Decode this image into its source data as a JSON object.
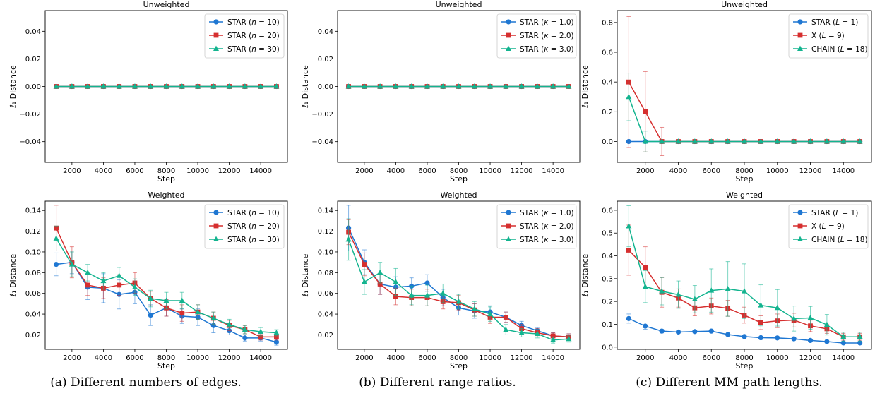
{
  "captions": [
    "(a) Different numbers of edges.",
    "(b) Different range ratios.",
    "(c) Different MM path lengths."
  ],
  "colors": {
    "blue": "#1f77d2",
    "red": "#d62f2f",
    "green": "#13b48f"
  },
  "chart_data": [
    {
      "type": "line",
      "title": "Unweighted",
      "xlabel": "Step",
      "ylabel": "ℓ₁ Distance",
      "x": [
        1000,
        2000,
        3000,
        4000,
        5000,
        6000,
        7000,
        8000,
        9000,
        10000,
        11000,
        12000,
        13000,
        14000,
        15000
      ],
      "xticks": [
        2000,
        4000,
        6000,
        8000,
        10000,
        12000,
        14000
      ],
      "xlim": [
        300,
        15700
      ],
      "ylim": [
        -0.055,
        0.055
      ],
      "yticks": [
        -0.04,
        -0.02,
        0.0,
        0.02,
        0.04
      ],
      "ytick_labels": [
        "−0.04",
        "−0.02",
        "0.00",
        "0.02",
        "0.04"
      ],
      "legend_position": "top-right",
      "series": [
        {
          "name": "STAR (n = 10)",
          "label_main": "STAR (",
          "label_var": "n",
          "label_rest": " = 10)",
          "color": "#1f77d2",
          "marker": "circle",
          "values": [
            0,
            0,
            0,
            0,
            0,
            0,
            0,
            0,
            0,
            0,
            0,
            0,
            0,
            0,
            0
          ],
          "errors": [
            0,
            0,
            0,
            0,
            0,
            0,
            0,
            0,
            0,
            0,
            0,
            0,
            0,
            0,
            0
          ]
        },
        {
          "name": "STAR (n = 20)",
          "label_main": "STAR (",
          "label_var": "n",
          "label_rest": " = 20)",
          "color": "#d62f2f",
          "marker": "square",
          "values": [
            0,
            0,
            0,
            0,
            0,
            0,
            0,
            0,
            0,
            0,
            0,
            0,
            0,
            0,
            0
          ],
          "errors": [
            0,
            0,
            0,
            0,
            0,
            0,
            0,
            0,
            0,
            0,
            0,
            0,
            0,
            0,
            0
          ]
        },
        {
          "name": "STAR (n = 30)",
          "label_main": "STAR (",
          "label_var": "n",
          "label_rest": " = 30)",
          "color": "#13b48f",
          "marker": "triangle",
          "values": [
            0,
            0,
            0,
            0,
            0,
            0,
            0,
            0,
            0,
            0,
            0,
            0,
            0,
            0,
            0
          ],
          "errors": [
            0,
            0,
            0,
            0,
            0,
            0,
            0,
            0,
            0,
            0,
            0,
            0,
            0,
            0,
            0
          ]
        }
      ]
    },
    {
      "type": "line",
      "title": "Unweighted",
      "xlabel": "Step",
      "ylabel": "ℓ₁ Distance",
      "x": [
        1000,
        2000,
        3000,
        4000,
        5000,
        6000,
        7000,
        8000,
        9000,
        10000,
        11000,
        12000,
        13000,
        14000,
        15000
      ],
      "xticks": [
        2000,
        4000,
        6000,
        8000,
        10000,
        12000,
        14000
      ],
      "xlim": [
        300,
        15700
      ],
      "ylim": [
        -0.055,
        0.055
      ],
      "yticks": [
        -0.04,
        -0.02,
        0.0,
        0.02,
        0.04
      ],
      "ytick_labels": [
        "−0.04",
        "−0.02",
        "0.00",
        "0.02",
        "0.04"
      ],
      "legend_position": "top-right",
      "series": [
        {
          "name": "STAR (κ = 1.0)",
          "label_main": "STAR (",
          "label_var": "κ",
          "label_rest": " = 1.0)",
          "color": "#1f77d2",
          "marker": "circle",
          "values": [
            0,
            0,
            0,
            0,
            0,
            0,
            0,
            0,
            0,
            0,
            0,
            0,
            0,
            0,
            0
          ],
          "errors": [
            0,
            0,
            0,
            0,
            0,
            0,
            0,
            0,
            0,
            0,
            0,
            0,
            0,
            0,
            0
          ]
        },
        {
          "name": "STAR (κ = 2.0)",
          "label_main": "STAR (",
          "label_var": "κ",
          "label_rest": " = 2.0)",
          "color": "#d62f2f",
          "marker": "square",
          "values": [
            0,
            0,
            0,
            0,
            0,
            0,
            0,
            0,
            0,
            0,
            0,
            0,
            0,
            0,
            0
          ],
          "errors": [
            0,
            0,
            0,
            0,
            0,
            0,
            0,
            0,
            0,
            0,
            0,
            0,
            0,
            0,
            0
          ]
        },
        {
          "name": "STAR (κ = 3.0)",
          "label_main": "STAR (",
          "label_var": "κ",
          "label_rest": " = 3.0)",
          "color": "#13b48f",
          "marker": "triangle",
          "values": [
            0,
            0,
            0,
            0,
            0,
            0,
            0,
            0,
            0,
            0,
            0,
            0,
            0,
            0,
            0
          ],
          "errors": [
            0,
            0,
            0,
            0,
            0,
            0,
            0,
            0,
            0,
            0,
            0,
            0,
            0,
            0,
            0
          ]
        }
      ]
    },
    {
      "type": "line",
      "title": "Unweighted",
      "xlabel": "Step",
      "ylabel": "ℓ₁ Distance",
      "x": [
        1000,
        2000,
        3000,
        4000,
        5000,
        6000,
        7000,
        8000,
        9000,
        10000,
        11000,
        12000,
        13000,
        14000,
        15000
      ],
      "xticks": [
        2000,
        4000,
        6000,
        8000,
        10000,
        12000,
        14000
      ],
      "xlim": [
        300,
        15700
      ],
      "ylim": [
        -0.14,
        0.88
      ],
      "yticks": [
        0.0,
        0.2,
        0.4,
        0.6,
        0.8
      ],
      "ytick_labels": [
        "0.0",
        "0.2",
        "0.4",
        "0.6",
        "0.8"
      ],
      "legend_position": "top-right",
      "series": [
        {
          "name": "STAR (L = 1)",
          "label_main": "STAR (",
          "label_var": "L",
          "label_rest": " = 1)",
          "color": "#1f77d2",
          "marker": "circle",
          "values": [
            0,
            0,
            0,
            0,
            0,
            0,
            0,
            0,
            0,
            0,
            0,
            0,
            0,
            0,
            0
          ],
          "errors": [
            0,
            0,
            0,
            0,
            0,
            0,
            0,
            0,
            0,
            0,
            0,
            0,
            0,
            0,
            0
          ]
        },
        {
          "name": "X (L = 9)",
          "label_main": "X (",
          "label_var": "L",
          "label_rest": " = 9)",
          "color": "#d62f2f",
          "marker": "square",
          "values": [
            0.4,
            0.2,
            0,
            0,
            0,
            0,
            0,
            0,
            0,
            0,
            0,
            0,
            0,
            0,
            0
          ],
          "errors": [
            0.44,
            0.27,
            0.095,
            0,
            0,
            0,
            0,
            0,
            0,
            0,
            0,
            0,
            0,
            0,
            0
          ]
        },
        {
          "name": "CHAIN (L = 18)",
          "label_main": "CHAIN (",
          "label_var": "L",
          "label_rest": " = 18)",
          "color": "#13b48f",
          "marker": "triangle",
          "values": [
            0.3,
            0,
            0,
            0,
            0,
            0,
            0,
            0,
            0,
            0,
            0,
            0,
            0,
            0,
            0
          ],
          "errors": [
            0.16,
            0.07,
            0,
            0,
            0,
            0,
            0,
            0,
            0,
            0,
            0,
            0,
            0,
            0,
            0
          ]
        }
      ]
    },
    {
      "type": "line",
      "title": "Weighted",
      "xlabel": "Step",
      "ylabel": "ℓ₁ Distance",
      "x": [
        1000,
        2000,
        3000,
        4000,
        5000,
        6000,
        7000,
        8000,
        9000,
        10000,
        11000,
        12000,
        13000,
        14000,
        15000
      ],
      "xticks": [
        2000,
        4000,
        6000,
        8000,
        10000,
        12000,
        14000
      ],
      "xlim": [
        300,
        15700
      ],
      "ylim": [
        0.006,
        0.149
      ],
      "yticks": [
        0.02,
        0.04,
        0.06,
        0.08,
        0.1,
        0.12,
        0.14
      ],
      "ytick_labels": [
        "0.02",
        "0.04",
        "0.06",
        "0.08",
        "0.10",
        "0.12",
        "0.14"
      ],
      "legend_position": "top-right",
      "series": [
        {
          "name": "STAR (n = 10)",
          "label_main": "STAR (",
          "label_var": "n",
          "label_rest": " = 10)",
          "color": "#1f77d2",
          "marker": "circle",
          "values": [
            0.088,
            0.09,
            0.066,
            0.065,
            0.059,
            0.061,
            0.039,
            0.046,
            0.038,
            0.037,
            0.029,
            0.024,
            0.017,
            0.017,
            0.013
          ],
          "errors": [
            0.011,
            0.011,
            0.012,
            0.014,
            0.014,
            0.011,
            0.01,
            0.008,
            0.007,
            0.008,
            0.007,
            0.004,
            0.003,
            0.003,
            0.003
          ]
        },
        {
          "name": "STAR (n = 20)",
          "label_main": "STAR (",
          "label_var": "n",
          "label_rest": " = 20)",
          "color": "#d62f2f",
          "marker": "square",
          "values": [
            0.123,
            0.09,
            0.068,
            0.065,
            0.068,
            0.07,
            0.055,
            0.046,
            0.041,
            0.042,
            0.036,
            0.029,
            0.025,
            0.018,
            0.018
          ],
          "errors": [
            0.022,
            0.015,
            0.01,
            0.01,
            0.01,
            0.01,
            0.007,
            0.008,
            0.008,
            0.007,
            0.006,
            0.005,
            0.004,
            0.003,
            0.003
          ]
        },
        {
          "name": "STAR (n = 30)",
          "label_main": "STAR (",
          "label_var": "n",
          "label_rest": " = 30)",
          "color": "#13b48f",
          "marker": "triangle",
          "values": [
            0.113,
            0.088,
            0.08,
            0.072,
            0.077,
            0.066,
            0.055,
            0.053,
            0.053,
            0.042,
            0.036,
            0.03,
            0.025,
            0.023,
            0.022
          ],
          "errors": [
            0.012,
            0.012,
            0.008,
            0.008,
            0.008,
            0.008,
            0.008,
            0.008,
            0.008,
            0.007,
            0.006,
            0.005,
            0.004,
            0.004,
            0.003
          ]
        }
      ]
    },
    {
      "type": "line",
      "title": "Weighted",
      "xlabel": "Step",
      "ylabel": "ℓ₁ Distance",
      "x": [
        1000,
        2000,
        3000,
        4000,
        5000,
        6000,
        7000,
        8000,
        9000,
        10000,
        11000,
        12000,
        13000,
        14000,
        15000
      ],
      "xticks": [
        2000,
        4000,
        6000,
        8000,
        10000,
        12000,
        14000
      ],
      "xlim": [
        300,
        15700
      ],
      "ylim": [
        0.006,
        0.149
      ],
      "yticks": [
        0.02,
        0.04,
        0.06,
        0.08,
        0.1,
        0.12,
        0.14
      ],
      "ytick_labels": [
        "0.02",
        "0.04",
        "0.06",
        "0.08",
        "0.10",
        "0.12",
        "0.14"
      ],
      "legend_position": "top-right",
      "series": [
        {
          "name": "STAR (κ = 1.0)",
          "label_main": "STAR (",
          "label_var": "κ",
          "label_rest": " = 1.0)",
          "color": "#1f77d2",
          "marker": "circle",
          "values": [
            0.123,
            0.09,
            0.069,
            0.066,
            0.067,
            0.07,
            0.056,
            0.046,
            0.043,
            0.042,
            0.037,
            0.029,
            0.024,
            0.019,
            0.018
          ],
          "errors": [
            0.022,
            0.012,
            0.01,
            0.01,
            0.008,
            0.008,
            0.008,
            0.007,
            0.007,
            0.006,
            0.005,
            0.004,
            0.003,
            0.003,
            0.003
          ]
        },
        {
          "name": "STAR (κ = 2.0)",
          "label_main": "STAR (",
          "label_var": "κ",
          "label_rest": " = 2.0)",
          "color": "#d62f2f",
          "marker": "square",
          "values": [
            0.119,
            0.088,
            0.069,
            0.057,
            0.056,
            0.056,
            0.052,
            0.051,
            0.044,
            0.037,
            0.037,
            0.026,
            0.022,
            0.019,
            0.018
          ],
          "errors": [
            0.012,
            0.011,
            0.01,
            0.008,
            0.008,
            0.008,
            0.007,
            0.007,
            0.006,
            0.006,
            0.005,
            0.004,
            0.004,
            0.003,
            0.003
          ]
        },
        {
          "name": "STAR (κ = 3.0)",
          "label_main": "STAR (",
          "label_var": "κ",
          "label_rest": " = 3.0)",
          "color": "#13b48f",
          "marker": "triangle",
          "values": [
            0.112,
            0.071,
            0.08,
            0.071,
            0.058,
            0.058,
            0.06,
            0.052,
            0.045,
            0.04,
            0.025,
            0.022,
            0.021,
            0.015,
            0.016
          ],
          "errors": [
            0.02,
            0.012,
            0.01,
            0.013,
            0.009,
            0.01,
            0.009,
            0.007,
            0.007,
            0.007,
            0.005,
            0.004,
            0.004,
            0.003,
            0.003
          ]
        }
      ]
    },
    {
      "type": "line",
      "title": "Weighted",
      "xlabel": "Step",
      "ylabel": "ℓ₁ Distance",
      "x": [
        1000,
        2000,
        3000,
        4000,
        5000,
        6000,
        7000,
        8000,
        9000,
        10000,
        11000,
        12000,
        13000,
        14000,
        15000
      ],
      "xticks": [
        2000,
        4000,
        6000,
        8000,
        10000,
        12000,
        14000
      ],
      "xlim": [
        300,
        15700
      ],
      "ylim": [
        -0.01,
        0.64
      ],
      "yticks": [
        0.0,
        0.1,
        0.2,
        0.3,
        0.4,
        0.5,
        0.6
      ],
      "ytick_labels": [
        "0.0",
        "0.1",
        "0.2",
        "0.3",
        "0.4",
        "0.5",
        "0.6"
      ],
      "legend_position": "top-right",
      "series": [
        {
          "name": "STAR (L = 1)",
          "label_main": "STAR (",
          "label_var": "L",
          "label_rest": " = 1)",
          "color": "#1f77d2",
          "marker": "circle",
          "values": [
            0.125,
            0.092,
            0.07,
            0.066,
            0.068,
            0.07,
            0.055,
            0.046,
            0.041,
            0.04,
            0.036,
            0.029,
            0.024,
            0.018,
            0.018
          ],
          "errors": [
            0.02,
            0.014,
            0.008,
            0.006,
            0.006,
            0.006,
            0.005,
            0.005,
            0.005,
            0.004,
            0.004,
            0.004,
            0.003,
            0.003,
            0.003
          ]
        },
        {
          "name": "X (L = 9)",
          "label_main": "X (",
          "label_var": "L",
          "label_rest": " = 9)",
          "color": "#d62f2f",
          "marker": "square",
          "values": [
            0.425,
            0.35,
            0.24,
            0.215,
            0.172,
            0.18,
            0.17,
            0.14,
            0.107,
            0.115,
            0.118,
            0.093,
            0.08,
            0.045,
            0.045
          ],
          "errors": [
            0.11,
            0.09,
            0.065,
            0.04,
            0.035,
            0.035,
            0.035,
            0.035,
            0.03,
            0.03,
            0.03,
            0.025,
            0.02,
            0.015,
            0.015
          ]
        },
        {
          "name": "CHAIN (L = 18)",
          "label_main": "CHAIN (",
          "label_var": "L",
          "label_rest": " = 18)",
          "color": "#13b48f",
          "marker": "triangle",
          "values": [
            0.53,
            0.265,
            0.245,
            0.23,
            0.21,
            0.248,
            0.255,
            0.245,
            0.183,
            0.172,
            0.125,
            0.128,
            0.098,
            0.045,
            0.045
          ],
          "errors": [
            0.09,
            0.07,
            0.06,
            0.06,
            0.06,
            0.095,
            0.12,
            0.12,
            0.09,
            0.08,
            0.055,
            0.05,
            0.045,
            0.02,
            0.02
          ]
        }
      ]
    }
  ]
}
